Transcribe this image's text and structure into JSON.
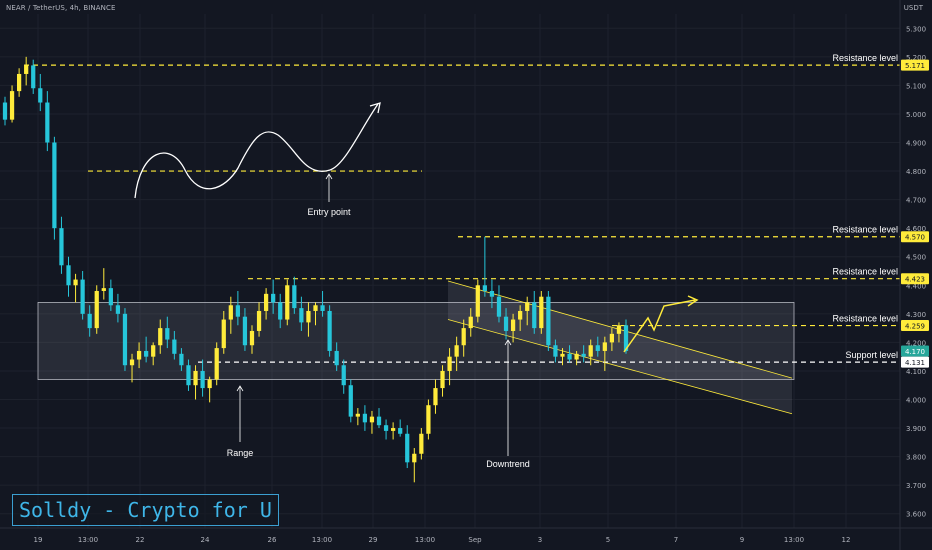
{
  "header": {
    "symbol": "NEAR / TetherUS, 4h, BINANCE",
    "currency": "USDT"
  },
  "watermark": "Solldy - Crypto for U",
  "colors": {
    "background": "#131722",
    "up": "#ffeb3b",
    "down": "#26c6da",
    "level_line": "#ffeb3b",
    "support_line": "#ffffff",
    "annotation": "#ffffff",
    "forecast": "#ffeb3b",
    "grid": "#1e222d"
  },
  "chart_data": {
    "type": "candlestick",
    "ylim": [
      3.55,
      5.35
    ],
    "y_ticks": [
      "5.300",
      "5.200",
      "5.100",
      "5.000",
      "4.900",
      "4.800",
      "4.700",
      "4.600",
      "4.500",
      "4.400",
      "4.300",
      "4.200",
      "4.100",
      "4.000",
      "3.900",
      "3.800",
      "3.700",
      "3.600"
    ],
    "x_ticks": [
      "19",
      "13:00",
      "22",
      "24",
      "26",
      "13:00",
      "29",
      "13:00",
      "Sep",
      "3",
      "5",
      "7",
      "9",
      "13:00",
      "12"
    ],
    "grid": true,
    "price_labels": [
      {
        "value": 5.171,
        "text": "5.171",
        "style": "yellow"
      },
      {
        "value": 4.57,
        "text": "4.570",
        "style": "yellow"
      },
      {
        "value": 4.423,
        "text": "4.423",
        "style": "yellow"
      },
      {
        "value": 4.259,
        "text": "4.259",
        "style": "yellow"
      },
      {
        "value": 4.17,
        "text": "4.170",
        "style": "green"
      },
      {
        "value": 4.131,
        "text": "4.131",
        "style": "white"
      }
    ],
    "levels": [
      {
        "label": "Resistance level",
        "value": 5.171,
        "type": "resistance"
      },
      {
        "label": "Resistance level",
        "value": 4.57,
        "type": "resistance"
      },
      {
        "label": "Resistance level",
        "value": 4.423,
        "type": "resistance"
      },
      {
        "label": "Resistance level",
        "value": 4.259,
        "type": "resistance"
      },
      {
        "label": "Support level",
        "value": 4.131,
        "type": "support"
      }
    ],
    "annotations": [
      "Entry point",
      "Range",
      "Downtrend"
    ],
    "range_box": {
      "top": 4.34,
      "bottom": 4.07
    },
    "channel": {
      "upper": [
        [
          4.41,
          4.09
        ]
      ],
      "note": "descending channel from the breakdown high toward the right edge"
    },
    "candles": [
      [
        5.04,
        5.06,
        4.96,
        4.98
      ],
      [
        4.98,
        5.1,
        4.97,
        5.08
      ],
      [
        5.08,
        5.16,
        5.06,
        5.14
      ],
      [
        5.14,
        5.2,
        5.1,
        5.17
      ],
      [
        5.17,
        5.19,
        5.07,
        5.09
      ],
      [
        5.09,
        5.14,
        5.01,
        5.04
      ],
      [
        5.04,
        5.08,
        4.87,
        4.9
      ],
      [
        4.9,
        4.92,
        4.56,
        4.6
      ],
      [
        4.6,
        4.64,
        4.44,
        4.47
      ],
      [
        4.47,
        4.5,
        4.36,
        4.4
      ],
      [
        4.4,
        4.44,
        4.34,
        4.42
      ],
      [
        4.42,
        4.45,
        4.28,
        4.3
      ],
      [
        4.3,
        4.33,
        4.22,
        4.25
      ],
      [
        4.25,
        4.4,
        4.23,
        4.38
      ],
      [
        4.38,
        4.46,
        4.35,
        4.39
      ],
      [
        4.39,
        4.42,
        4.31,
        4.33
      ],
      [
        4.33,
        4.37,
        4.27,
        4.3
      ],
      [
        4.3,
        4.32,
        4.1,
        4.12
      ],
      [
        4.12,
        4.16,
        4.06,
        4.14
      ],
      [
        4.14,
        4.2,
        4.11,
        4.17
      ],
      [
        4.17,
        4.22,
        4.13,
        4.15
      ],
      [
        4.15,
        4.2,
        4.12,
        4.19
      ],
      [
        4.19,
        4.28,
        4.16,
        4.25
      ],
      [
        4.25,
        4.29,
        4.18,
        4.21
      ],
      [
        4.21,
        4.24,
        4.14,
        4.16
      ],
      [
        4.16,
        4.18,
        4.1,
        4.12
      ],
      [
        4.12,
        4.14,
        4.03,
        4.05
      ],
      [
        4.05,
        4.12,
        4.0,
        4.1
      ],
      [
        4.1,
        4.14,
        4.01,
        4.04
      ],
      [
        4.04,
        4.08,
        3.99,
        4.07
      ],
      [
        4.07,
        4.2,
        4.05,
        4.18
      ],
      [
        4.18,
        4.31,
        4.16,
        4.28
      ],
      [
        4.28,
        4.36,
        4.23,
        4.33
      ],
      [
        4.33,
        4.38,
        4.26,
        4.29
      ],
      [
        4.29,
        4.32,
        4.17,
        4.19
      ],
      [
        4.19,
        4.26,
        4.16,
        4.24
      ],
      [
        4.24,
        4.34,
        4.22,
        4.31
      ],
      [
        4.31,
        4.39,
        4.28,
        4.37
      ],
      [
        4.37,
        4.42,
        4.3,
        4.34
      ],
      [
        4.34,
        4.37,
        4.25,
        4.28
      ],
      [
        4.28,
        4.42,
        4.26,
        4.4
      ],
      [
        4.4,
        4.43,
        4.3,
        4.32
      ],
      [
        4.32,
        4.36,
        4.24,
        4.27
      ],
      [
        4.27,
        4.34,
        4.22,
        4.31
      ],
      [
        4.31,
        4.34,
        4.26,
        4.33
      ],
      [
        4.33,
        4.38,
        4.29,
        4.31
      ],
      [
        4.31,
        4.33,
        4.15,
        4.17
      ],
      [
        4.17,
        4.2,
        4.1,
        4.12
      ],
      [
        4.12,
        4.14,
        4.02,
        4.05
      ],
      [
        4.05,
        4.07,
        3.92,
        3.94
      ],
      [
        3.94,
        3.97,
        3.91,
        3.95
      ],
      [
        3.95,
        3.98,
        3.89,
        3.92
      ],
      [
        3.92,
        3.96,
        3.88,
        3.94
      ],
      [
        3.94,
        3.97,
        3.9,
        3.91
      ],
      [
        3.91,
        3.93,
        3.86,
        3.89
      ],
      [
        3.89,
        3.92,
        3.86,
        3.9
      ],
      [
        3.9,
        3.93,
        3.87,
        3.88
      ],
      [
        3.88,
        3.91,
        3.76,
        3.78
      ],
      [
        3.78,
        3.83,
        3.71,
        3.81
      ],
      [
        3.81,
        3.9,
        3.79,
        3.88
      ],
      [
        3.88,
        4.0,
        3.86,
        3.98
      ],
      [
        3.98,
        4.07,
        3.95,
        4.04
      ],
      [
        4.04,
        4.12,
        4.01,
        4.1
      ],
      [
        4.1,
        4.18,
        4.05,
        4.15
      ],
      [
        4.15,
        4.22,
        4.1,
        4.19
      ],
      [
        4.19,
        4.28,
        4.15,
        4.25
      ],
      [
        4.25,
        4.32,
        4.22,
        4.29
      ],
      [
        4.29,
        4.42,
        4.27,
        4.4
      ],
      [
        4.4,
        4.57,
        4.36,
        4.38
      ],
      [
        4.38,
        4.42,
        4.32,
        4.36
      ],
      [
        4.36,
        4.4,
        4.27,
        4.29
      ],
      [
        4.29,
        4.32,
        4.21,
        4.24
      ],
      [
        4.24,
        4.3,
        4.2,
        4.28
      ],
      [
        4.28,
        4.33,
        4.24,
        4.31
      ],
      [
        4.31,
        4.36,
        4.26,
        4.34
      ],
      [
        4.34,
        4.38,
        4.23,
        4.25
      ],
      [
        4.25,
        4.38,
        4.23,
        4.36
      ],
      [
        4.36,
        4.38,
        4.17,
        4.19
      ],
      [
        4.19,
        4.21,
        4.13,
        4.15
      ],
      [
        4.15,
        4.18,
        4.12,
        4.16
      ],
      [
        4.16,
        4.19,
        4.13,
        4.14
      ],
      [
        4.14,
        4.17,
        4.12,
        4.16
      ],
      [
        4.16,
        4.19,
        4.13,
        4.15
      ],
      [
        4.15,
        4.21,
        4.12,
        4.19
      ],
      [
        4.19,
        4.22,
        4.15,
        4.17
      ],
      [
        4.17,
        4.22,
        4.1,
        4.2
      ],
      [
        4.2,
        4.25,
        4.17,
        4.23
      ],
      [
        4.23,
        4.27,
        4.2,
        4.26
      ],
      [
        4.26,
        4.28,
        4.16,
        4.17
      ]
    ]
  }
}
